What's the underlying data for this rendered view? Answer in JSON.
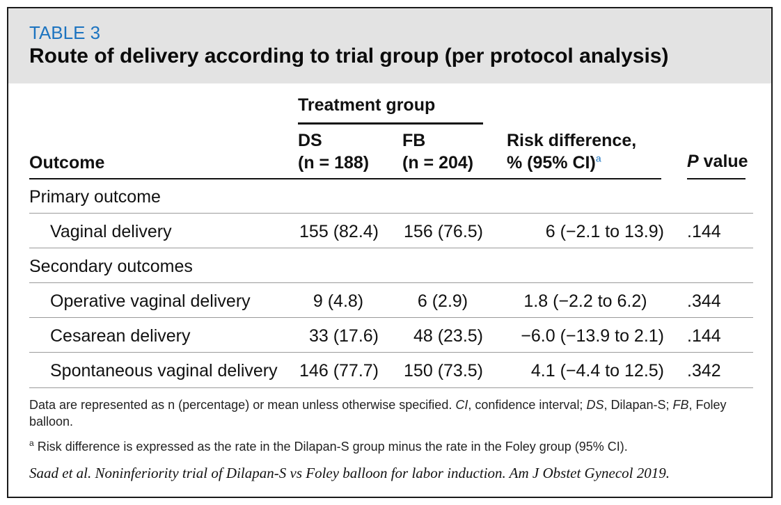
{
  "table": {
    "number": "TABLE 3",
    "title": "Route of delivery according to trial group (per protocol analysis)",
    "header": {
      "outcome": "Outcome",
      "treatment_group": "Treatment group",
      "ds": "DS",
      "ds_n": "(n = 188)",
      "fb": "FB",
      "fb_n": "(n = 204)",
      "risk_line1": "Risk difference,",
      "risk_line2": "% (95% CI)",
      "risk_sup": "a",
      "p_letter": "P",
      "p_rest": " value"
    },
    "sections": [
      {
        "label": "Primary outcome",
        "rows": [
          {
            "outcome": "Vaginal delivery",
            "ds": "155 (82.4)",
            "fb": "156 (76.5)",
            "risk": "6 (−2.1 to 13.9)",
            "p": ".144"
          }
        ]
      },
      {
        "label": "Secondary outcomes",
        "rows": [
          {
            "outcome": "Operative vaginal delivery",
            "ds": "9 (4.8)",
            "fb": "6 (2.9)",
            "risk": "1.8 (−2.2 to 6.2)",
            "p": ".344"
          },
          {
            "outcome": "Cesarean delivery",
            "ds": "33 (17.6)",
            "fb": "48 (23.5)",
            "risk": "−6.0 (−13.9 to 2.1)",
            "p": ".144"
          },
          {
            "outcome": "Spontaneous vaginal delivery",
            "ds": "146 (77.7)",
            "fb": "150 (73.5)",
            "risk": "4.1 (−4.4 to 12.5)",
            "p": ".342"
          }
        ]
      }
    ],
    "footnote_pre": "Data are represented as n (percentage) or mean unless otherwise specified. ",
    "footnote_ci": "CI",
    "footnote_ci_def": ", confidence interval; ",
    "footnote_ds": "DS",
    "footnote_ds_def": ", Dilapan-S; ",
    "footnote_fb": "FB",
    "footnote_fb_def": ", Foley balloon.",
    "footnote_a_mark": "a",
    "footnote_a_text": " Risk difference is expressed as the rate in the Dilapan-S group minus the rate in the Foley group (95% CI).",
    "citation": "Saad et al. Noninferiority trial of Dilapan-S vs Foley balloon for labor induction. Am J Obstet Gynecol 2019."
  }
}
